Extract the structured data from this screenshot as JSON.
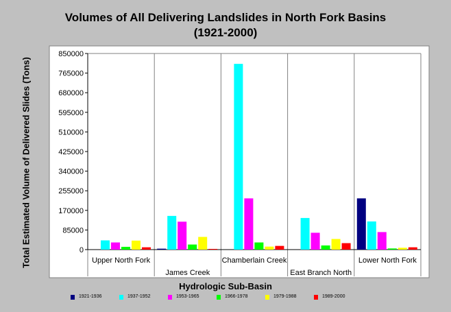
{
  "chart_data": {
    "type": "bar",
    "title": "Volumes of All Delivering Landslides in North Fork Basins",
    "subtitle": "(1921-2000)",
    "xlabel": "Hydrologic Sub-Basin",
    "ylabel": "Total Estimated Volume of Delivered Slides (Tons)",
    "ylim": [
      0,
      850000
    ],
    "yticks": [
      "0",
      "85000",
      "170000",
      "255000",
      "340000",
      "425000",
      "510000",
      "595000",
      "680000",
      "765000",
      "850000"
    ],
    "categories": [
      "Upper North Fork",
      "James Creek",
      "Chamberlain Creek",
      "East Branch North",
      "Lower North Fork"
    ],
    "series": [
      {
        "name": "1921-1936",
        "color": "#000080",
        "values": [
          0,
          4000,
          0,
          0,
          222000
        ]
      },
      {
        "name": "1937-1952",
        "color": "#00ffff",
        "values": [
          40000,
          146000,
          805000,
          137000,
          122000
        ]
      },
      {
        "name": "1953-1965",
        "color": "#ff00ff",
        "values": [
          31000,
          121000,
          222000,
          73000,
          76000
        ]
      },
      {
        "name": "1966-1978",
        "color": "#00ff00",
        "values": [
          12000,
          22000,
          31000,
          18000,
          5000
        ]
      },
      {
        "name": "1979-1988",
        "color": "#ffff00",
        "values": [
          39000,
          55000,
          13000,
          46000,
          8000
        ]
      },
      {
        "name": "1989-2000",
        "color": "#ff0000",
        "values": [
          10000,
          3000,
          16000,
          28000,
          10000
        ]
      }
    ],
    "grid": "vertical separators between categories",
    "legend_position": "bottom"
  }
}
